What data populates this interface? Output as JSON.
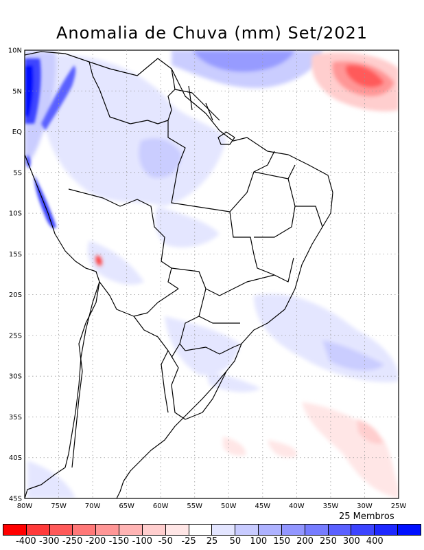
{
  "title": "Anomalia de Chuva (mm) Set/2021",
  "members_label": "25 Membros",
  "map": {
    "lon_range": [
      -80,
      -25
    ],
    "lat_range": [
      -45,
      10
    ],
    "x_ticks": [
      "80W",
      "75W",
      "70W",
      "65W",
      "60W",
      "55W",
      "50W",
      "45W",
      "40W",
      "35W",
      "30W",
      "25W"
    ],
    "y_ticks": [
      "10N",
      "5N",
      "EQ",
      "5S",
      "10S",
      "15S",
      "20S",
      "25S",
      "30S",
      "35S",
      "40S",
      "45S"
    ],
    "gridlines": true
  },
  "colorbar": {
    "colors": [
      "#ff0000",
      "#ff3a3a",
      "#ff5a5a",
      "#ff7878",
      "#ff9696",
      "#ffb4b4",
      "#ffcece",
      "#ffe6e6",
      "#ffffff",
      "#e3e5ff",
      "#c8cbff",
      "#aeb2ff",
      "#9296ff",
      "#767cff",
      "#5a60ff",
      "#3c44ff",
      "#1e28ff",
      "#0010ff"
    ],
    "labels": [
      "-400",
      "-300",
      "-250",
      "-200",
      "-150",
      "-100",
      "-50",
      "-25",
      "25",
      "50",
      "100",
      "150",
      "200",
      "250",
      "300",
      "400"
    ]
  }
}
